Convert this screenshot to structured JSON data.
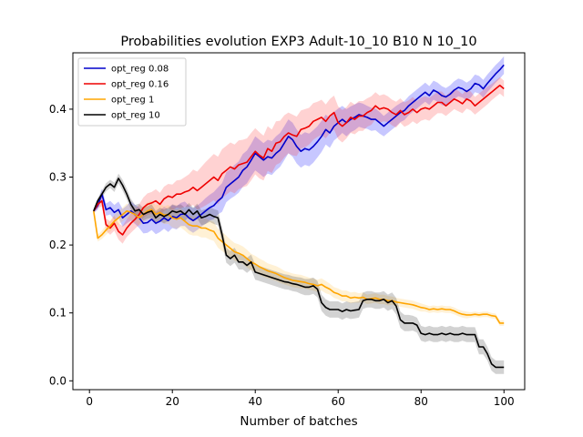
{
  "chart_data": {
    "type": "line",
    "title": "Probabilities evolution EXP3 Adult-10_10 B10 N 10_10",
    "xlabel": "Number of batches",
    "ylabel": "",
    "xlim": [
      -4,
      105
    ],
    "ylim": [
      -0.013,
      0.483
    ],
    "xticks": [
      0,
      20,
      40,
      60,
      80,
      100
    ],
    "yticks": [
      0.0,
      0.1,
      0.2,
      0.3,
      0.4
    ],
    "xtick_labels": [
      "0",
      "20",
      "40",
      "60",
      "80",
      "100"
    ],
    "ytick_labels": [
      "0.0",
      "0.1",
      "0.2",
      "0.3",
      "0.4"
    ],
    "grid": false,
    "legend": {
      "placement": "upper-left"
    },
    "x_step": 1,
    "x_start": 1,
    "series": [
      {
        "name": "opt_reg 0.08",
        "color": "#0000cc",
        "band_color": "#0000ff",
        "values": [
          0.25,
          0.258,
          0.275,
          0.252,
          0.255,
          0.248,
          0.252,
          0.24,
          0.245,
          0.25,
          0.245,
          0.24,
          0.232,
          0.233,
          0.238,
          0.232,
          0.235,
          0.24,
          0.236,
          0.242,
          0.24,
          0.245,
          0.246,
          0.24,
          0.236,
          0.24,
          0.245,
          0.25,
          0.255,
          0.258,
          0.265,
          0.27,
          0.285,
          0.29,
          0.295,
          0.3,
          0.31,
          0.315,
          0.325,
          0.335,
          0.33,
          0.325,
          0.33,
          0.328,
          0.335,
          0.34,
          0.35,
          0.36,
          0.355,
          0.345,
          0.338,
          0.342,
          0.34,
          0.345,
          0.352,
          0.36,
          0.37,
          0.365,
          0.375,
          0.38,
          0.385,
          0.38,
          0.385,
          0.388,
          0.392,
          0.39,
          0.388,
          0.385,
          0.385,
          0.38,
          0.375,
          0.38,
          0.385,
          0.39,
          0.395,
          0.398,
          0.405,
          0.41,
          0.415,
          0.42,
          0.425,
          0.42,
          0.428,
          0.425,
          0.42,
          0.418,
          0.422,
          0.428,
          0.432,
          0.43,
          0.426,
          0.43,
          0.438,
          0.436,
          0.43,
          0.438,
          0.445,
          0.452,
          0.458,
          0.465
        ],
        "band": [
          0.003,
          0.006,
          0.008,
          0.009,
          0.01,
          0.011,
          0.012,
          0.013,
          0.013,
          0.014,
          0.014,
          0.015,
          0.015,
          0.015,
          0.016,
          0.016,
          0.016,
          0.016,
          0.017,
          0.017,
          0.017,
          0.017,
          0.018,
          0.018,
          0.018,
          0.018,
          0.018,
          0.019,
          0.019,
          0.02,
          0.02,
          0.021,
          0.022,
          0.022,
          0.023,
          0.023,
          0.024,
          0.024,
          0.024,
          0.025,
          0.025,
          0.025,
          0.025,
          0.025,
          0.025,
          0.025,
          0.025,
          0.025,
          0.025,
          0.025,
          0.024,
          0.024,
          0.024,
          0.024,
          0.023,
          0.023,
          0.022,
          0.022,
          0.021,
          0.021,
          0.02,
          0.02,
          0.019,
          0.019,
          0.018,
          0.018,
          0.017,
          0.017,
          0.016,
          0.016,
          0.015,
          0.015,
          0.015,
          0.015,
          0.014,
          0.014,
          0.014,
          0.014,
          0.014,
          0.014,
          0.014,
          0.014,
          0.014,
          0.014,
          0.014,
          0.013,
          0.013,
          0.013,
          0.013,
          0.013,
          0.013,
          0.013,
          0.013,
          0.013,
          0.013,
          0.013,
          0.013,
          0.013,
          0.013,
          0.013
        ]
      },
      {
        "name": "opt_reg 0.16",
        "color": "#ee0000",
        "band_color": "#ff3333",
        "values": [
          0.25,
          0.26,
          0.265,
          0.23,
          0.225,
          0.232,
          0.22,
          0.215,
          0.225,
          0.232,
          0.238,
          0.245,
          0.255,
          0.26,
          0.262,
          0.265,
          0.26,
          0.268,
          0.272,
          0.27,
          0.275,
          0.275,
          0.278,
          0.28,
          0.285,
          0.28,
          0.285,
          0.29,
          0.295,
          0.3,
          0.295,
          0.305,
          0.31,
          0.315,
          0.312,
          0.318,
          0.32,
          0.322,
          0.33,
          0.338,
          0.332,
          0.328,
          0.342,
          0.338,
          0.35,
          0.352,
          0.36,
          0.365,
          0.362,
          0.36,
          0.37,
          0.372,
          0.375,
          0.382,
          0.385,
          0.388,
          0.382,
          0.39,
          0.395,
          0.38,
          0.375,
          0.38,
          0.388,
          0.385,
          0.39,
          0.39,
          0.395,
          0.398,
          0.405,
          0.4,
          0.402,
          0.4,
          0.395,
          0.392,
          0.398,
          0.392,
          0.395,
          0.4,
          0.395,
          0.4,
          0.402,
          0.4,
          0.405,
          0.41,
          0.41,
          0.405,
          0.41,
          0.415,
          0.412,
          0.408,
          0.415,
          0.412,
          0.405,
          0.41,
          0.415,
          0.42,
          0.425,
          0.43,
          0.435,
          0.43
        ],
        "band": [
          0.003,
          0.006,
          0.008,
          0.009,
          0.01,
          0.011,
          0.012,
          0.013,
          0.013,
          0.014,
          0.014,
          0.015,
          0.015,
          0.016,
          0.016,
          0.017,
          0.017,
          0.018,
          0.018,
          0.019,
          0.02,
          0.021,
          0.022,
          0.024,
          0.026,
          0.028,
          0.03,
          0.032,
          0.033,
          0.034,
          0.035,
          0.036,
          0.036,
          0.036,
          0.036,
          0.036,
          0.035,
          0.035,
          0.035,
          0.034,
          0.034,
          0.033,
          0.033,
          0.032,
          0.032,
          0.031,
          0.031,
          0.03,
          0.03,
          0.029,
          0.028,
          0.028,
          0.027,
          0.027,
          0.026,
          0.026,
          0.025,
          0.025,
          0.025,
          0.024,
          0.024,
          0.023,
          0.023,
          0.022,
          0.022,
          0.022,
          0.021,
          0.021,
          0.02,
          0.02,
          0.02,
          0.019,
          0.019,
          0.019,
          0.018,
          0.018,
          0.018,
          0.018,
          0.017,
          0.017,
          0.017,
          0.017,
          0.016,
          0.016,
          0.016,
          0.015,
          0.015,
          0.015,
          0.015,
          0.014,
          0.014,
          0.014,
          0.013,
          0.013,
          0.013,
          0.013,
          0.012,
          0.012,
          0.012,
          0.012
        ]
      },
      {
        "name": "opt_reg 1",
        "color": "#ffa500",
        "band_color": "#ffc040",
        "values": [
          0.25,
          0.21,
          0.215,
          0.222,
          0.228,
          0.235,
          0.24,
          0.245,
          0.25,
          0.248,
          0.245,
          0.24,
          0.245,
          0.25,
          0.252,
          0.245,
          0.248,
          0.244,
          0.245,
          0.24,
          0.238,
          0.24,
          0.235,
          0.23,
          0.228,
          0.228,
          0.225,
          0.225,
          0.222,
          0.22,
          0.21,
          0.205,
          0.2,
          0.195,
          0.19,
          0.188,
          0.185,
          0.18,
          0.175,
          0.172,
          0.168,
          0.165,
          0.162,
          0.16,
          0.158,
          0.155,
          0.152,
          0.15,
          0.148,
          0.147,
          0.146,
          0.145,
          0.143,
          0.142,
          0.14,
          0.142,
          0.138,
          0.135,
          0.13,
          0.128,
          0.125,
          0.125,
          0.122,
          0.123,
          0.122,
          0.123,
          0.12,
          0.121,
          0.122,
          0.12,
          0.12,
          0.118,
          0.118,
          0.116,
          0.115,
          0.114,
          0.113,
          0.112,
          0.11,
          0.108,
          0.107,
          0.105,
          0.106,
          0.105,
          0.106,
          0.105,
          0.105,
          0.103,
          0.1,
          0.098,
          0.097,
          0.097,
          0.098,
          0.097,
          0.098,
          0.098,
          0.096,
          0.095,
          0.085,
          0.085
        ],
        "band": [
          0.003,
          0.005,
          0.006,
          0.007,
          0.008,
          0.009,
          0.01,
          0.01,
          0.011,
          0.011,
          0.012,
          0.012,
          0.012,
          0.013,
          0.013,
          0.013,
          0.013,
          0.013,
          0.014,
          0.014,
          0.014,
          0.014,
          0.014,
          0.014,
          0.014,
          0.014,
          0.014,
          0.014,
          0.014,
          0.014,
          0.014,
          0.014,
          0.014,
          0.013,
          0.013,
          0.013,
          0.013,
          0.013,
          0.012,
          0.012,
          0.012,
          0.012,
          0.011,
          0.011,
          0.011,
          0.011,
          0.01,
          0.01,
          0.01,
          0.01,
          0.01,
          0.009,
          0.009,
          0.009,
          0.009,
          0.009,
          0.009,
          0.008,
          0.008,
          0.008,
          0.008,
          0.008,
          0.008,
          0.008,
          0.007,
          0.007,
          0.007,
          0.007,
          0.007,
          0.007,
          0.007,
          0.007,
          0.006,
          0.006,
          0.006,
          0.006,
          0.006,
          0.006,
          0.006,
          0.006,
          0.005,
          0.005,
          0.005,
          0.005,
          0.005,
          0.005,
          0.005,
          0.005,
          0.005,
          0.005,
          0.005,
          0.004,
          0.004,
          0.004,
          0.004,
          0.004,
          0.004,
          0.004,
          0.004,
          0.004
        ]
      },
      {
        "name": "opt_reg 10",
        "color": "#000000",
        "band_color": "#333333",
        "values": [
          0.25,
          0.265,
          0.275,
          0.285,
          0.29,
          0.285,
          0.298,
          0.288,
          0.275,
          0.26,
          0.25,
          0.252,
          0.245,
          0.248,
          0.25,
          0.24,
          0.245,
          0.242,
          0.245,
          0.25,
          0.248,
          0.25,
          0.245,
          0.252,
          0.245,
          0.25,
          0.24,
          0.242,
          0.245,
          0.242,
          0.24,
          0.215,
          0.185,
          0.18,
          0.185,
          0.175,
          0.175,
          0.17,
          0.175,
          0.16,
          0.158,
          0.156,
          0.154,
          0.152,
          0.15,
          0.148,
          0.146,
          0.145,
          0.143,
          0.142,
          0.14,
          0.138,
          0.138,
          0.14,
          0.135,
          0.115,
          0.108,
          0.105,
          0.105,
          0.105,
          0.102,
          0.105,
          0.103,
          0.104,
          0.105,
          0.118,
          0.12,
          0.12,
          0.118,
          0.118,
          0.12,
          0.115,
          0.118,
          0.11,
          0.09,
          0.085,
          0.085,
          0.085,
          0.082,
          0.07,
          0.068,
          0.07,
          0.068,
          0.068,
          0.07,
          0.068,
          0.07,
          0.068,
          0.068,
          0.07,
          0.068,
          0.068,
          0.068,
          0.05,
          0.05,
          0.04,
          0.025,
          0.02,
          0.02,
          0.02
        ],
        "band": [
          0.003,
          0.004,
          0.005,
          0.006,
          0.006,
          0.007,
          0.007,
          0.008,
          0.008,
          0.008,
          0.009,
          0.009,
          0.009,
          0.009,
          0.01,
          0.01,
          0.01,
          0.01,
          0.01,
          0.01,
          0.01,
          0.01,
          0.01,
          0.01,
          0.01,
          0.011,
          0.011,
          0.011,
          0.011,
          0.011,
          0.011,
          0.011,
          0.011,
          0.011,
          0.011,
          0.011,
          0.011,
          0.011,
          0.011,
          0.011,
          0.011,
          0.011,
          0.011,
          0.011,
          0.011,
          0.011,
          0.011,
          0.011,
          0.011,
          0.011,
          0.012,
          0.012,
          0.012,
          0.012,
          0.012,
          0.012,
          0.012,
          0.012,
          0.012,
          0.012,
          0.012,
          0.012,
          0.012,
          0.012,
          0.012,
          0.012,
          0.012,
          0.012,
          0.012,
          0.012,
          0.012,
          0.012,
          0.012,
          0.012,
          0.012,
          0.012,
          0.012,
          0.011,
          0.011,
          0.011,
          0.011,
          0.011,
          0.011,
          0.011,
          0.011,
          0.011,
          0.011,
          0.011,
          0.011,
          0.011,
          0.011,
          0.011,
          0.011,
          0.011,
          0.011,
          0.01,
          0.01,
          0.01,
          0.01,
          0.01
        ]
      }
    ]
  }
}
